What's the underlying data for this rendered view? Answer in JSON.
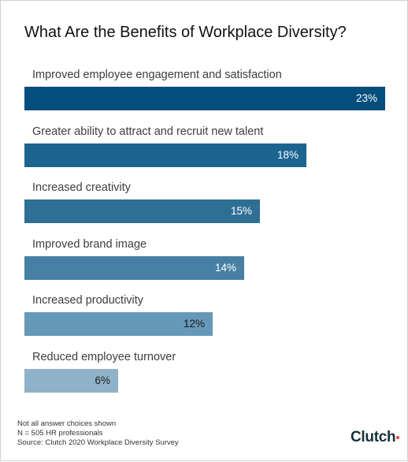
{
  "title": "What Are the Benefits of Workplace Diversity?",
  "chart_data": {
    "type": "bar",
    "orientation": "horizontal",
    "title": "What Are the Benefits of Workplace Diversity?",
    "categories": [
      "Improved employee engagement and satisfaction",
      "Greater ability to attract and recruit new talent",
      "Increased creativity",
      "Improved brand image",
      "Increased productivity",
      "Reduced employee turnover"
    ],
    "values": [
      23,
      18,
      15,
      14,
      12,
      6
    ],
    "value_labels": [
      "23%",
      "18%",
      "15%",
      "14%",
      "12%",
      "6%"
    ],
    "unit": "%",
    "xlim": [
      0,
      23
    ],
    "grid": false,
    "legend": "none",
    "bar_colors": [
      "#034e7b",
      "#1c6490",
      "#2f6f96",
      "#4780a4",
      "#6698b8",
      "#8fb2c9"
    ],
    "label_colors": [
      "#ffffff",
      "#ffffff",
      "#ffffff",
      "#ffffff",
      "#1a1a1a",
      "#1a1a1a"
    ]
  },
  "footnotes": [
    "Not all answer choices shown",
    "N = 505 HR professionals",
    "Source: Clutch 2020 Workplace Diversity Survey"
  ],
  "brand": {
    "name": "Clutch",
    "accent_color": "#ef4335"
  }
}
